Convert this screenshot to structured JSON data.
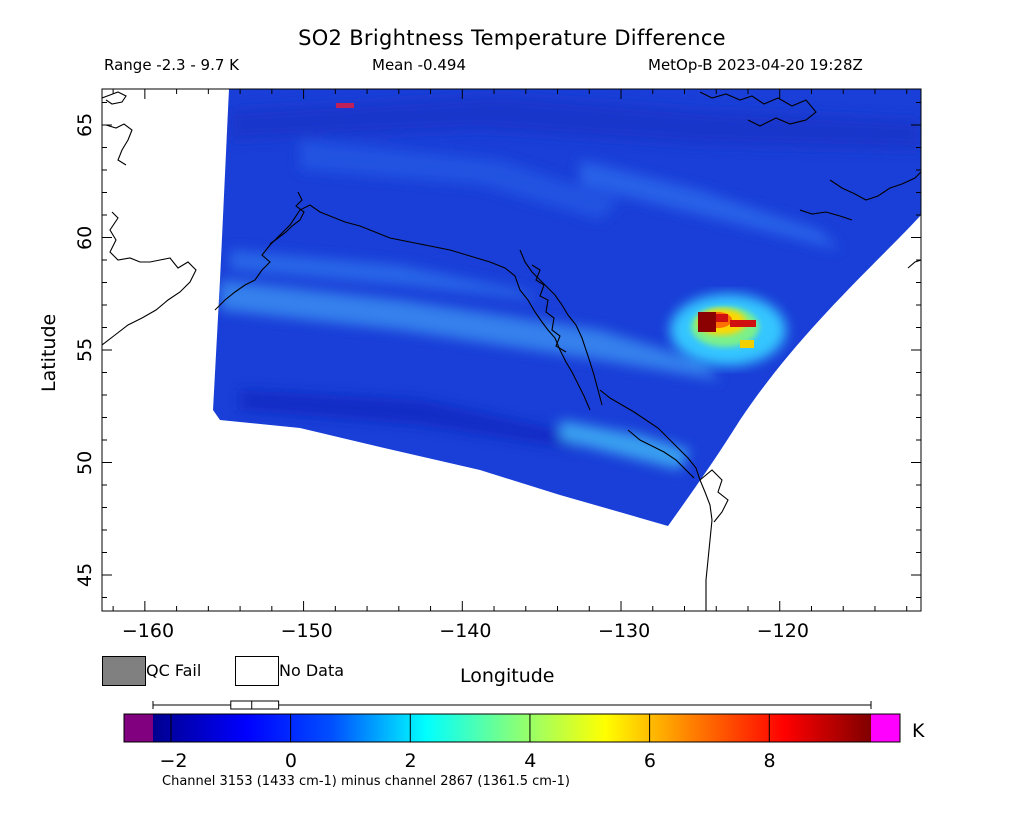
{
  "title": "SO2 Brightness Temperature Difference",
  "subtitle": {
    "range": "Range -2.3 - 9.7 K",
    "mean": "Mean -0.494",
    "satellite_time": "MetOp-B 2023-04-20 19:28Z"
  },
  "axes": {
    "xlabel": "Longitude",
    "ylabel": "Latitude",
    "x_ticks": [
      "−160",
      "−150",
      "−140",
      "−130",
      "−120"
    ],
    "y_ticks": [
      "65",
      "60",
      "55",
      "50",
      "45"
    ],
    "x_tick_values": [
      -160,
      -150,
      -140,
      -130,
      -120
    ],
    "y_tick_values": [
      65,
      60,
      55,
      50,
      45
    ],
    "xlim": [
      -162.7,
      -111.1
    ],
    "ylim": [
      43.4,
      66.6
    ]
  },
  "legend": {
    "qc_fail": "QC Fail",
    "no_data": "No Data",
    "qc_fail_color": "#808080",
    "no_data_color": "#ffffff"
  },
  "colorbar": {
    "unit": "K",
    "ticks": [
      "−2",
      "0",
      "2",
      "4",
      "6",
      "8"
    ],
    "tick_values": [
      -2,
      0,
      2,
      4,
      6,
      8
    ],
    "range": [
      -2.3,
      9.7
    ],
    "under_color": "#800080",
    "over_color": "#ff00ff",
    "boxplot": {
      "min": -2.3,
      "q1": -1.0,
      "median": -0.65,
      "q3": -0.2,
      "max": 9.7
    }
  },
  "footnote": "Channel 3153 (1433 cm-1) minus channel 2867 (1361.5 cm-1)",
  "colors": {
    "background_field": "#1a3fd8",
    "hotspot": "#8b0000",
    "coastline": "#000000"
  },
  "hotspot": {
    "lon": -123.5,
    "lat": 55.6,
    "peak_K": 9.7
  }
}
